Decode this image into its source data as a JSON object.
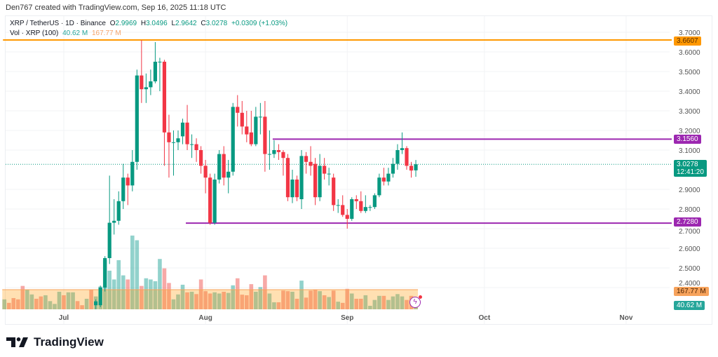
{
  "credit": "Den767 created with TradingView.com, Sep 16, 2025 11:18 UTC",
  "legend": {
    "symbol": "XRP / TetherUS · 1D · Binance",
    "o_label": "O",
    "o": "2.9969",
    "h_label": "H",
    "h": "3.0496",
    "l_label": "L",
    "l": "2.9642",
    "c_label": "C",
    "c": "3.0278",
    "change": "+0.0309 (+1.03%)",
    "vol_label": "Vol · XRP (100)",
    "vol": "40.62 M",
    "vol_ma": "167.77 M"
  },
  "price_tags": {
    "resistance_top": "3.6607",
    "resistance": "3.1560",
    "last": "3.0278",
    "countdown": "12:41:20",
    "support": "2.7280",
    "vol_ma": "167.77 M",
    "vol": "40.62 M"
  },
  "logo_text": "TradingView",
  "colors": {
    "up": "#089981",
    "down": "#f23645",
    "orange": "#ff9800",
    "purple": "#9c27b0",
    "vol_up": "#26a69a",
    "vol_down": "#ef5350"
  },
  "chart_data": {
    "type": "candlestick",
    "title": "XRP / TetherUS · 1D · Binance",
    "interval": "1D",
    "ylim": [
      2.4,
      3.7
    ],
    "y_ticks": [
      "3.7000",
      "3.6000",
      "3.5000",
      "3.4000",
      "3.3000",
      "3.2000",
      "3.1000",
      "2.9000",
      "2.8000",
      "2.7000",
      "2.6000",
      "2.5000",
      "2.4000"
    ],
    "x_ticks": [
      {
        "label": "Jul",
        "day": 0
      },
      {
        "label": "Aug",
        "day": 31
      },
      {
        "label": "Sep",
        "day": 62
      },
      {
        "label": "Oct",
        "day": 92
      },
      {
        "label": "Nov",
        "day": 123
      }
    ],
    "x_origin": "2025-07-01",
    "candles_start_day": 7,
    "ohlc": [
      [
        2.31,
        2.34,
        2.29,
        2.33
      ],
      [
        2.31,
        2.41,
        2.3,
        2.4
      ],
      [
        2.4,
        2.56,
        2.38,
        2.55
      ],
      [
        2.55,
        2.97,
        2.52,
        2.73
      ],
      [
        2.73,
        2.85,
        2.67,
        2.74
      ],
      [
        2.74,
        2.89,
        2.72,
        2.84
      ],
      [
        2.84,
        3.03,
        2.8,
        2.96
      ],
      [
        2.96,
        2.98,
        2.82,
        2.92
      ],
      [
        2.92,
        3.1,
        2.89,
        3.04
      ],
      [
        3.04,
        3.51,
        3.0,
        3.48
      ],
      [
        3.48,
        3.66,
        3.34,
        3.41
      ],
      [
        3.41,
        3.49,
        3.34,
        3.42
      ],
      [
        3.42,
        3.51,
        3.38,
        3.45
      ],
      [
        3.45,
        3.65,
        3.44,
        3.55
      ],
      [
        3.55,
        3.57,
        3.4,
        3.55
      ],
      [
        3.55,
        3.56,
        3.02,
        3.19
      ],
      [
        3.19,
        3.28,
        2.96,
        3.14
      ],
      [
        3.14,
        3.2,
        2.97,
        3.14
      ],
      [
        3.14,
        3.2,
        3.1,
        3.16
      ],
      [
        3.17,
        3.26,
        3.13,
        3.24
      ],
      [
        3.24,
        3.33,
        3.1,
        3.13
      ],
      [
        3.13,
        3.18,
        3.06,
        3.13
      ],
      [
        3.13,
        3.16,
        3.04,
        3.1
      ],
      [
        3.1,
        3.12,
        2.98,
        3.02
      ],
      [
        3.02,
        3.05,
        2.88,
        2.96
      ],
      [
        2.96,
        2.98,
        2.72,
        2.73
      ],
      [
        2.73,
        2.98,
        2.72,
        2.95
      ],
      [
        2.95,
        3.1,
        2.93,
        3.08
      ],
      [
        3.08,
        3.12,
        2.92,
        2.96
      ],
      [
        2.96,
        3.05,
        2.88,
        2.99
      ],
      [
        2.99,
        3.34,
        2.97,
        3.32
      ],
      [
        3.32,
        3.38,
        3.22,
        3.29
      ],
      [
        3.29,
        3.35,
        3.18,
        3.22
      ],
      [
        3.22,
        3.3,
        3.14,
        3.18
      ],
      [
        3.19,
        3.3,
        3.12,
        3.13
      ],
      [
        3.13,
        3.32,
        3.12,
        3.27
      ],
      [
        3.27,
        3.34,
        3.18,
        3.27
      ],
      [
        3.27,
        3.35,
        2.99,
        3.08
      ],
      [
        3.08,
        3.2,
        3.0,
        3.08
      ],
      [
        3.08,
        3.15,
        3.06,
        3.1
      ],
      [
        3.1,
        3.13,
        3.05,
        3.09
      ],
      [
        3.09,
        3.1,
        2.97,
        3.06
      ],
      [
        3.06,
        3.08,
        2.84,
        2.86
      ],
      [
        2.86,
        3.0,
        2.83,
        2.95
      ],
      [
        2.95,
        2.97,
        2.84,
        2.86
      ],
      [
        2.85,
        3.1,
        2.8,
        3.07
      ],
      [
        3.07,
        3.09,
        2.98,
        3.04
      ],
      [
        3.04,
        3.12,
        2.97,
        3.02
      ],
      [
        3.03,
        3.06,
        2.82,
        2.86
      ],
      [
        2.86,
        3.08,
        2.84,
        3.02
      ],
      [
        3.02,
        3.06,
        2.95,
        2.98
      ],
      [
        2.98,
        3.01,
        2.92,
        2.98
      ],
      [
        2.96,
        2.98,
        2.79,
        2.82
      ],
      [
        2.82,
        2.85,
        2.78,
        2.82
      ],
      [
        2.82,
        2.87,
        2.76,
        2.77
      ],
      [
        2.77,
        2.8,
        2.7,
        2.75
      ],
      [
        2.75,
        2.86,
        2.74,
        2.85
      ],
      [
        2.85,
        2.87,
        2.8,
        2.84
      ],
      [
        2.84,
        2.89,
        2.78,
        2.79
      ],
      [
        2.79,
        2.87,
        2.78,
        2.81
      ],
      [
        2.81,
        2.82,
        2.79,
        2.81
      ],
      [
        2.81,
        2.88,
        2.8,
        2.87
      ],
      [
        2.87,
        2.98,
        2.86,
        2.96
      ],
      [
        2.96,
        3.01,
        2.92,
        2.94
      ],
      [
        2.94,
        3.01,
        2.92,
        2.98
      ],
      [
        2.98,
        3.06,
        2.96,
        3.03
      ],
      [
        3.03,
        3.13,
        3.0,
        3.1
      ],
      [
        3.1,
        3.19,
        3.08,
        3.11
      ],
      [
        3.11,
        3.12,
        3.0,
        3.02
      ],
      [
        3.02,
        3.04,
        2.96,
        2.996
      ],
      [
        2.9969,
        3.0496,
        2.9642,
        3.0278
      ]
    ],
    "volume_start_day": -13,
    "volume_unit": "M",
    "volume_ma": 167.77,
    "volume_max": 700,
    "volume": [
      {
        "v": 85,
        "up": true
      },
      {
        "v": 55,
        "up": false
      },
      {
        "v": 96,
        "up": false
      },
      {
        "v": 85,
        "up": false
      },
      {
        "v": 200,
        "up": false
      },
      {
        "v": 170,
        "up": true
      },
      {
        "v": 127,
        "up": true
      },
      {
        "v": 90,
        "up": false
      },
      {
        "v": 110,
        "up": false
      },
      {
        "v": 120,
        "up": true
      },
      {
        "v": 70,
        "up": true
      },
      {
        "v": 46,
        "up": true
      },
      {
        "v": 150,
        "up": true
      },
      {
        "v": 120,
        "up": false
      },
      {
        "v": 145,
        "up": true
      },
      {
        "v": 145,
        "up": true
      },
      {
        "v": 70,
        "up": false
      },
      {
        "v": 35,
        "up": false
      },
      {
        "v": 90,
        "up": true
      },
      {
        "v": 170,
        "up": false
      },
      110,
      195,
      420,
      330,
      255,
      420,
      290,
      255,
      630,
      590,
      200,
      265,
      255,
      240,
      430,
      350,
      225,
      85,
      127,
      210,
      145,
      150,
      130,
      255,
      155,
      135,
      145,
      135,
      150,
      140,
      205,
      265,
      125,
      120,
      215,
      150,
      190,
      290,
      135,
      60,
      60,
      160,
      155,
      150,
      90,
      245,
      100,
      160,
      170,
      155,
      120,
      105,
      160,
      65,
      55,
      175,
      135,
      90,
      90,
      120,
      30,
      80,
      115,
      115,
      80,
      110,
      130,
      110,
      80,
      115,
      40.62
    ],
    "levels": [
      {
        "price": 3.6607,
        "color": "orange",
        "from_day": -13
      },
      {
        "price": 3.156,
        "color": "purple",
        "from_day": 46
      },
      {
        "price": 2.728,
        "color": "purple",
        "from_day": 27
      }
    ],
    "last_price": 3.0278
  }
}
